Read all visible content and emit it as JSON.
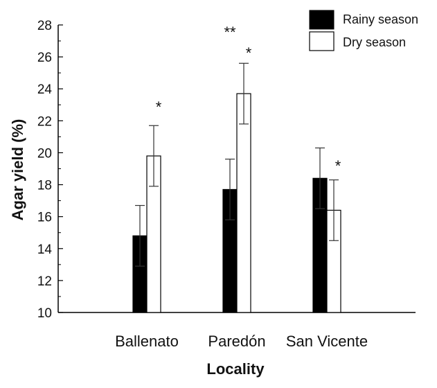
{
  "chart_data": {
    "type": "bar",
    "categories": [
      "Ballenato",
      "Paredón",
      "San Vicente"
    ],
    "series": [
      {
        "name": "Rainy season",
        "color": "#000000",
        "values": [
          14.8,
          17.7,
          18.4
        ],
        "errors": [
          1.9,
          1.9,
          1.9
        ],
        "annotations": [
          "",
          "**",
          ""
        ]
      },
      {
        "name": "Dry season",
        "color": "#ffffff",
        "values": [
          19.8,
          23.7,
          16.4
        ],
        "errors": [
          1.9,
          1.9,
          1.9
        ],
        "annotations": [
          "*",
          "*",
          "*"
        ]
      }
    ],
    "xlabel": "Locality",
    "ylabel": "Agar yield (%)",
    "ylim": [
      10,
      28
    ],
    "yticks": [
      10,
      12,
      14,
      16,
      18,
      20,
      22,
      24,
      26,
      28
    ],
    "grid": false,
    "legend_position": "top-right"
  }
}
